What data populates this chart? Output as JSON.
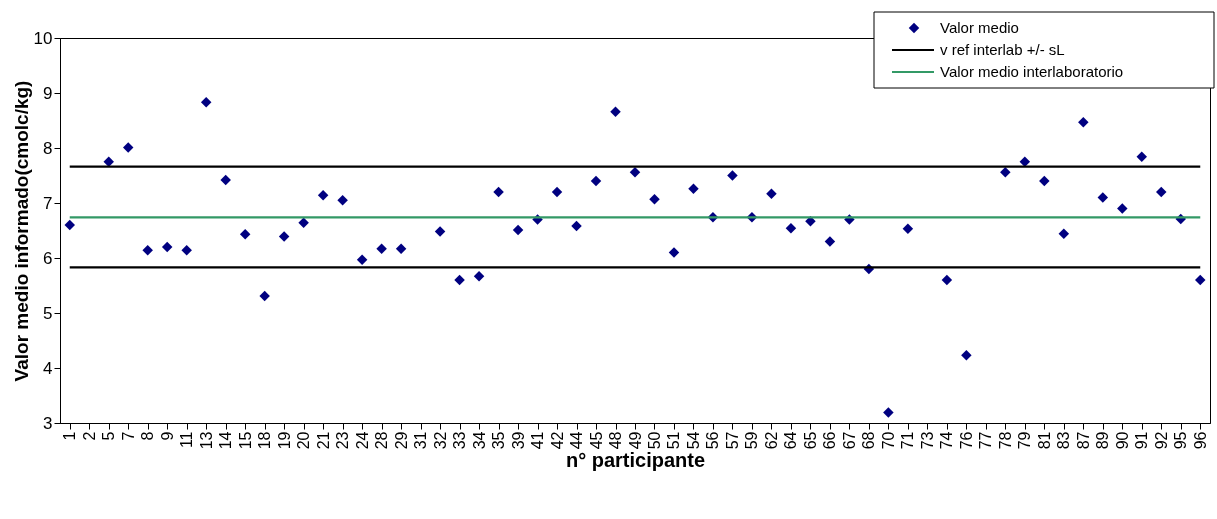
{
  "chart_data": {
    "type": "scatter",
    "xlabel": "n° participante",
    "ylabel": "Valor medio informado(cmolc/kg)",
    "categories": [
      "1",
      "2",
      "5",
      "7",
      "8",
      "9",
      "11",
      "13",
      "14",
      "15",
      "18",
      "19",
      "20",
      "21",
      "23",
      "24",
      "28",
      "29",
      "31",
      "32",
      "33",
      "34",
      "35",
      "39",
      "41",
      "42",
      "44",
      "45",
      "48",
      "49",
      "50",
      "51",
      "54",
      "56",
      "57",
      "59",
      "62",
      "64",
      "65",
      "66",
      "67",
      "68",
      "70",
      "71",
      "73",
      "74",
      "76",
      "77",
      "78",
      "79",
      "81",
      "83",
      "87",
      "89",
      "90",
      "91",
      "92",
      "95",
      "96"
    ],
    "series": [
      {
        "name": "Valor medio",
        "color": "#000080",
        "values": [
          6.6,
          null,
          7.75,
          8.01,
          6.14,
          6.2,
          6.14,
          8.83,
          7.42,
          6.43,
          5.31,
          6.39,
          6.64,
          7.14,
          7.05,
          5.97,
          6.17,
          6.17,
          null,
          6.48,
          5.6,
          5.67,
          7.2,
          6.51,
          6.7,
          7.2,
          6.58,
          7.4,
          8.66,
          7.56,
          7.07,
          6.1,
          7.26,
          6.74,
          7.5,
          6.74,
          7.17,
          6.54,
          6.67,
          6.3,
          6.7,
          5.8,
          3.19,
          6.53,
          null,
          5.6,
          4.23,
          null,
          7.56,
          7.75,
          7.4,
          6.44,
          8.47,
          7.1,
          6.9,
          7.84,
          7.2,
          6.71,
          5.6
        ]
      }
    ],
    "ref_lines": [
      {
        "axis": "y",
        "value": 7.66,
        "label": "v ref interlab +/- sL",
        "color": "#000000"
      },
      {
        "axis": "y",
        "value": 5.83,
        "color": "#000000"
      },
      {
        "axis": "y",
        "value": 6.74,
        "label": "Valor medio interlaboratorio",
        "color": "#339966"
      }
    ],
    "ylim": [
      3,
      10
    ],
    "yticks": [
      3,
      4,
      5,
      6,
      7,
      8,
      9,
      10
    ],
    "marker": "diamond",
    "legend": "top right",
    "grid": false
  }
}
